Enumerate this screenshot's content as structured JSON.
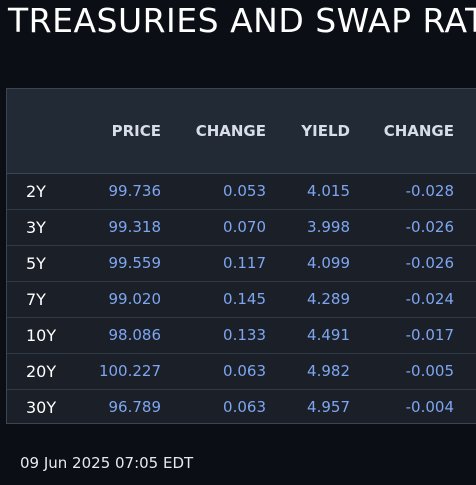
{
  "title": "TREASURIES AND SWAP RATES",
  "table": {
    "headers": [
      "",
      "PRICE",
      "CHANGE",
      "YIELD",
      "CHANGE"
    ],
    "rows": [
      {
        "tenor": "2Y",
        "price": "99.736",
        "change": "0.053",
        "yield": "4.015",
        "yield_change": "-0.028"
      },
      {
        "tenor": "3Y",
        "price": "99.318",
        "change": "0.070",
        "yield": "3.998",
        "yield_change": "-0.026"
      },
      {
        "tenor": "5Y",
        "price": "99.559",
        "change": "0.117",
        "yield": "4.099",
        "yield_change": "-0.026"
      },
      {
        "tenor": "7Y",
        "price": "99.020",
        "change": "0.145",
        "yield": "4.289",
        "yield_change": "-0.024"
      },
      {
        "tenor": "10Y",
        "price": "98.086",
        "change": "0.133",
        "yield": "4.491",
        "yield_change": "-0.017"
      },
      {
        "tenor": "20Y",
        "price": "100.227",
        "change": "0.063",
        "yield": "4.982",
        "yield_change": "-0.005"
      },
      {
        "tenor": "30Y",
        "price": "96.789",
        "change": "0.063",
        "yield": "4.957",
        "yield_change": "-0.004"
      }
    ]
  },
  "timestamp": "09 Jun 2025 07:05 EDT",
  "colors": {
    "background": "#0b0e14",
    "value_text": "#7ea6f0",
    "header_bg": "#222a36",
    "table_bg": "#1a1f28"
  }
}
